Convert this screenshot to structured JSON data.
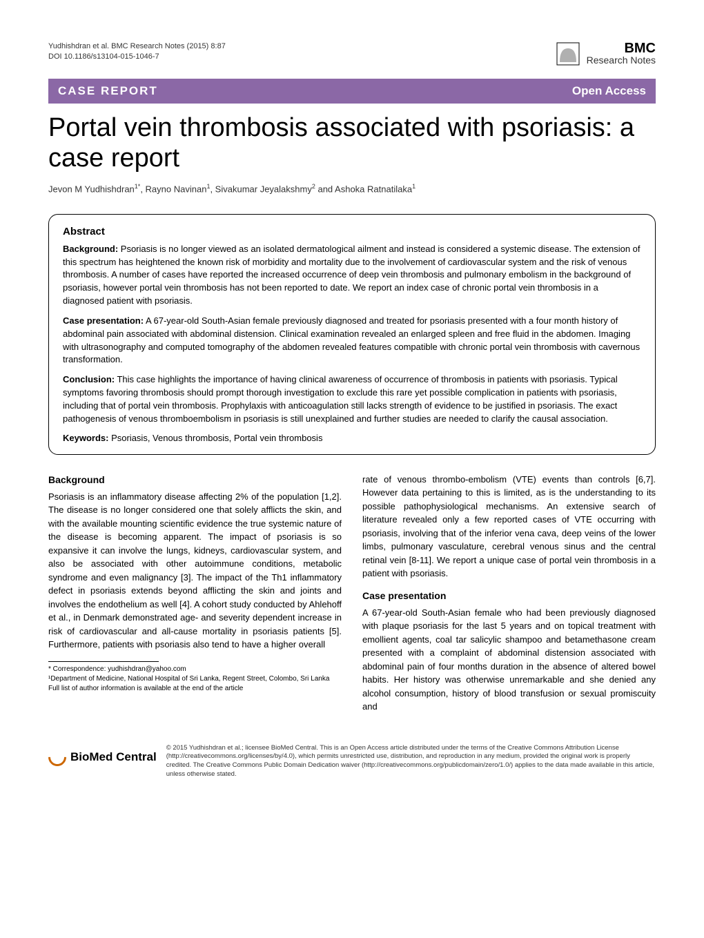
{
  "meta": {
    "citation": "Yudhishdran et al. BMC Research Notes  (2015) 8:87",
    "doi": "DOI 10.1186/s13104-015-1046-7"
  },
  "logo": {
    "fill_color": "#b0b0b0",
    "bmc": "BMC",
    "rn": "Research Notes"
  },
  "banner": {
    "bg_color": "#8b68a6",
    "left": "CASE REPORT",
    "right": "Open Access"
  },
  "title": "Portal vein thrombosis associated with psoriasis: a case report",
  "authors_html": "Jevon M Yudhishdran<sup>1*</sup>, Rayno Navinan<sup>1</sup>, Sivakumar Jeyalakshmy<sup>2</sup> and Ashoka Ratnatilaka<sup>1</sup>",
  "abstract": {
    "heading": "Abstract",
    "background_label": "Background:",
    "background_text": " Psoriasis is no longer viewed as an isolated dermatological ailment and instead is considered a systemic disease. The extension of this spectrum has heightened the known risk of morbidity and mortality due to the involvement of cardiovascular system and the risk of venous thrombosis. A number of cases have reported the increased occurrence of deep vein thrombosis and pulmonary embolism in the background of psoriasis, however portal vein thrombosis has not been reported to date. We report an index case of chronic portal vein thrombosis in a diagnosed patient with psoriasis.",
    "case_label": "Case presentation:",
    "case_text": " A 67-year-old South-Asian female previously diagnosed and treated for psoriasis presented with a four month history of abdominal pain associated with abdominal distension. Clinical examination revealed an enlarged spleen and free fluid in the abdomen. Imaging with ultrasonography and computed tomography of the abdomen revealed features compatible with chronic portal vein thrombosis with cavernous transformation.",
    "conclusion_label": "Conclusion:",
    "conclusion_text": " This case highlights the importance of having clinical awareness of occurrence of thrombosis in patients with psoriasis. Typical symptoms favoring thrombosis should prompt thorough investigation to exclude this rare yet possible complication in patients with psoriasis, including that of portal vein thrombosis. Prophylaxis with anticoagulation still lacks strength of evidence to be justified in psoriasis. The exact pathogenesis of venous thromboembolism in psoriasis is still unexplained and further studies are needed to clarify the causal association.",
    "keywords_label": "Keywords:",
    "keywords_text": " Psoriasis, Venous thrombosis, Portal vein thrombosis"
  },
  "body": {
    "background_heading": "Background",
    "background_p1": "Psoriasis is an inflammatory disease affecting 2% of the population [1,2]. The disease is no longer considered one that solely afflicts the skin, and with the available mounting scientific evidence the true systemic nature of the disease is becoming apparent. The impact of psoriasis is so expansive it can involve the lungs, kidneys, cardiovascular system, and also be associated with other autoimmune conditions, metabolic syndrome and even malignancy [3]. The impact of the Th1 inflammatory defect in psoriasis extends beyond afflicting the skin and joints and involves the endothelium as well [4]. A cohort study conducted by Ahlehoff et al., in Denmark demonstrated age- and severity dependent increase in risk of cardiovascular and all-cause mortality in psoriasis patients [5]. Furthermore, patients with psoriasis also tend to have a higher overall",
    "background_p2": "rate of venous thrombo-embolism (VTE) events than controls [6,7]. However data pertaining to this is limited, as is the understanding to its possible pathophysiological mechanisms. An extensive search of literature revealed only a few reported cases of VTE occurring with psoriasis, involving that of the inferior vena cava, deep veins of the lower limbs, pulmonary vasculature, cerebral venous sinus and the central retinal vein [8-11]. We report a unique case of portal vein thrombosis in a patient with psoriasis.",
    "case_heading": "Case presentation",
    "case_p1": "A 67-year-old South-Asian female who had been previously diagnosed with plaque psoriasis for the last 5 years and on topical treatment with emollient agents, coal tar salicylic shampoo and betamethasone cream presented with a complaint of abdominal distension associated with abdominal pain of four months duration in the absence of altered bowel habits. Her history was otherwise unremarkable and she denied any alcohol consumption, history of blood transfusion or sexual promiscuity and"
  },
  "footnotes": {
    "correspondence": "* Correspondence: yudhishdran@yahoo.com",
    "affiliation": "¹Department of Medicine, National Hospital of Sri Lanka, Regent Street, Colombo, Sri Lanka",
    "full_list": "Full list of author information is available at the end of the article"
  },
  "footer": {
    "bmc_label": "BioMed Central",
    "license": "© 2015 Yudhishdran et al.; licensee BioMed Central. This is an Open Access article distributed under the terms of the Creative Commons Attribution License (http://creativecommons.org/licenses/by/4.0), which permits unrestricted use, distribution, and reproduction in any medium, provided the original work is properly credited. The Creative Commons Public Domain Dedication waiver (http://creativecommons.org/publicdomain/zero/1.0/) applies to the data made available in this article, unless otherwise stated."
  }
}
